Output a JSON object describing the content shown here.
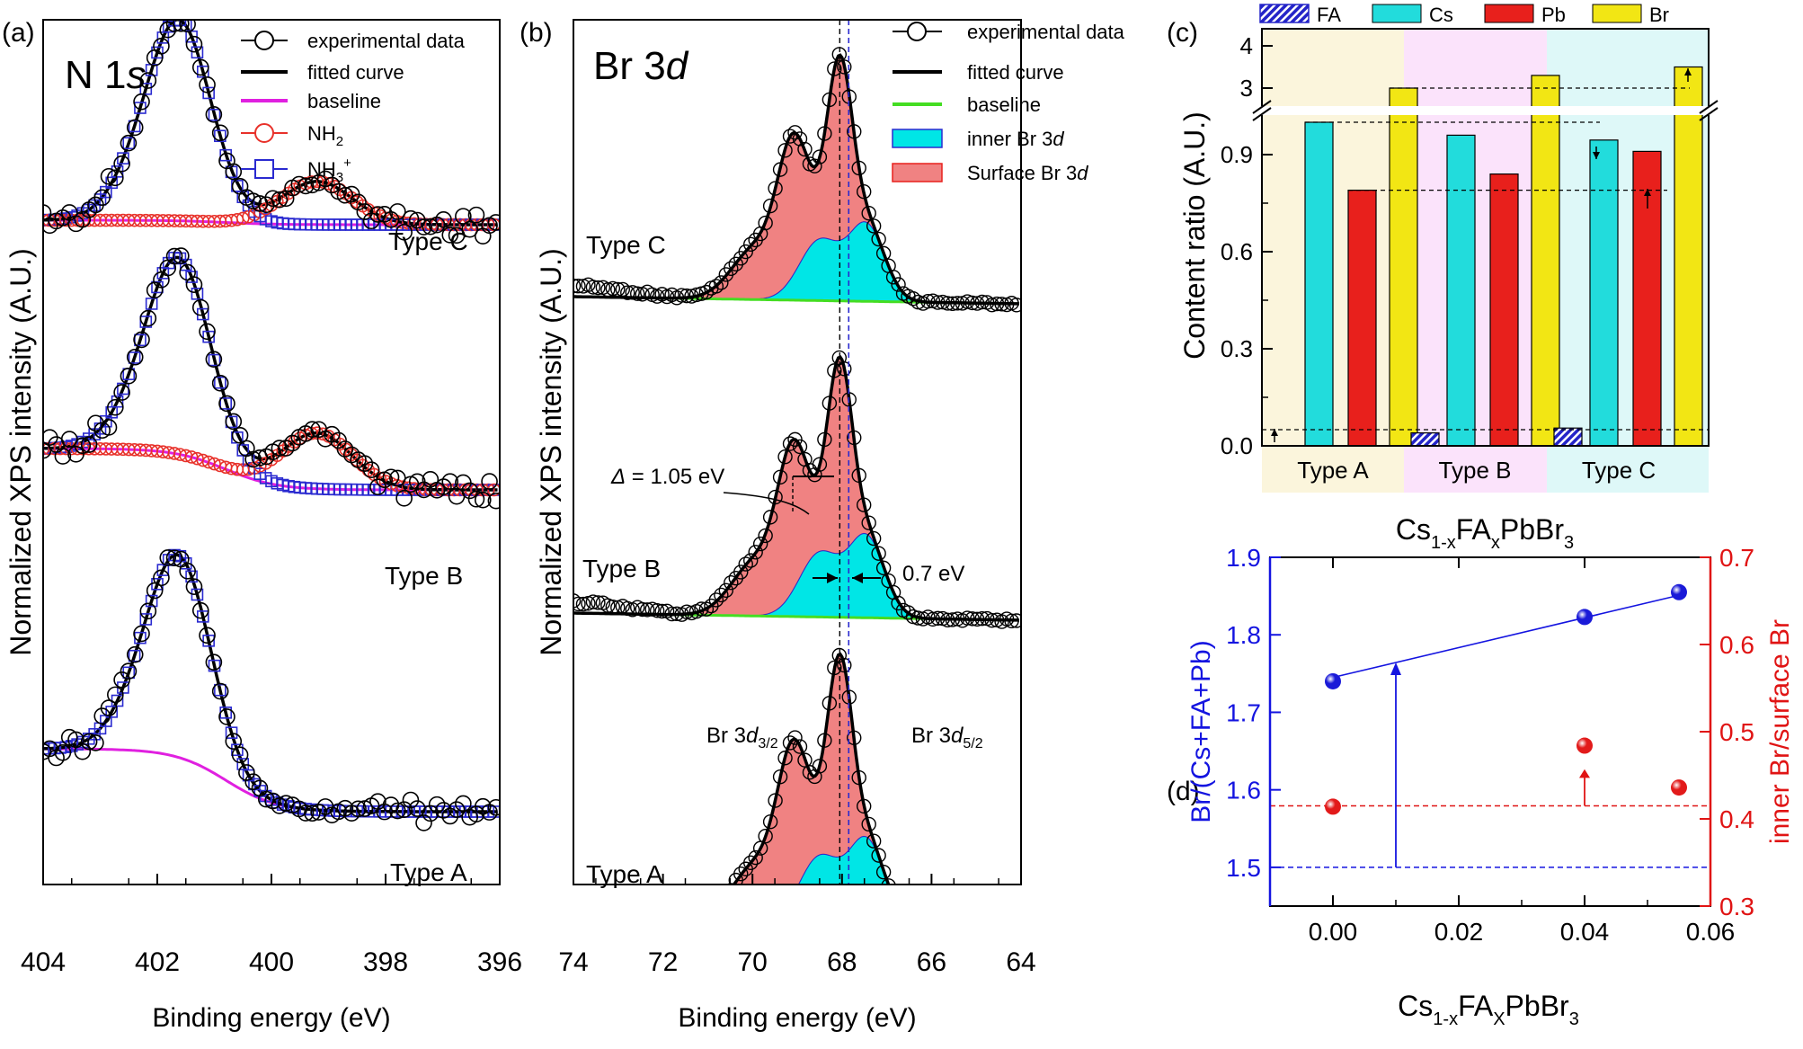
{
  "colors": {
    "nh2": "#e8312a",
    "nh3": "#2a2ad0",
    "baseline_a": "#e020e0",
    "baseline_b": "#44dd22",
    "inner": "#00e6e6",
    "surface": "#f08282",
    "fa": "#2424c8",
    "cs": "#22dcdc",
    "pb": "#e8201c",
    "br": "#f2e614",
    "bg_type_a": "#fbf5dc",
    "bg_type_b": "#fbe3fb",
    "bg_type_c": "#def8f8",
    "blue_axis": "#1414e0",
    "red_axis": "#e01414"
  },
  "chart_data": [
    {
      "id": "a",
      "type": "line",
      "panel_label": "(a)",
      "title": "N 1s",
      "xlabel": "Binding energy (eV)",
      "ylabel": "Normalized XPS intensity (A.U.)",
      "xlim": [
        404,
        396
      ],
      "xticks": [
        "404",
        "402",
        "400",
        "398",
        "396"
      ],
      "legend": [
        "experimental data",
        "fitted curve",
        "baseline",
        "NH2",
        "NH3+"
      ],
      "traces": [
        "Type C",
        "Type B",
        "Type A"
      ],
      "peaks": {
        "NH3+": {
          "Type A": 401.6,
          "Type B": 401.6,
          "Type C": 401.6
        },
        "NH2": {
          "Type A": null,
          "Type B": 399.2,
          "Type C": 399.2
        }
      }
    },
    {
      "id": "b",
      "type": "line",
      "panel_label": "(b)",
      "title": "Br 3d",
      "xlabel": "Binding energy (eV)",
      "ylabel": "Normalized XPS intensity (A.U.)",
      "xlim": [
        74,
        64
      ],
      "xticks": [
        "74",
        "72",
        "70",
        "68",
        "66",
        "64"
      ],
      "legend": [
        "experimental data",
        "fitted curve",
        "baseline",
        "inner Br 3d",
        "Surface Br 3d"
      ],
      "traces": [
        "Type C",
        "Type B",
        "Type A"
      ],
      "annotations": [
        "Δ = 1.05 eV",
        "0.7 eV",
        "Br 3d3/2",
        "Br 3d5/2"
      ],
      "reference_lines_eV": [
        68.05,
        67.85
      ]
    },
    {
      "id": "c",
      "type": "bar",
      "panel_label": "(c)",
      "xlabel": "Cs1-xFAxPbBr3",
      "ylabel": "Content ratio (A.U.)",
      "categories": [
        "Type A",
        "Type B",
        "Type C"
      ],
      "series": [
        {
          "name": "FA",
          "values": [
            0.0,
            0.04,
            0.055
          ]
        },
        {
          "name": "Cs",
          "values": [
            1.0,
            0.96,
            0.945
          ]
        },
        {
          "name": "Pb",
          "values": [
            0.79,
            0.84,
            0.91
          ]
        },
        {
          "name": "Br",
          "values": [
            3.0,
            3.3,
            3.5
          ]
        }
      ],
      "yticks_lower": [
        "0.0",
        "0.3",
        "0.6",
        "0.9"
      ],
      "yticks_upper": [
        "3",
        "4"
      ],
      "axis_break_between": [
        1.0,
        2.5
      ]
    },
    {
      "id": "d",
      "type": "scatter",
      "panel_label": "(d)",
      "title": "Cs1-xFAxPbBr3",
      "xlabel": "Cs1-xFAXPbBr3",
      "ylabel_left": "Br/(Cs+FA+Pb)",
      "ylabel_right": "inner Br/surface Br",
      "xlim": [
        -0.01,
        0.06
      ],
      "ylim_left": [
        1.45,
        1.9
      ],
      "ylim_right": [
        0.3,
        0.7
      ],
      "xticks": [
        "0.00",
        "0.02",
        "0.04",
        "0.06"
      ],
      "yticks_left": [
        "1.5",
        "1.6",
        "1.7",
        "1.8",
        "1.9"
      ],
      "yticks_right": [
        "0.3",
        "0.4",
        "0.5",
        "0.6",
        "0.7"
      ],
      "series": [
        {
          "name": "Br/(Cs+FA+Pb)",
          "axis": "left",
          "x": [
            0.0,
            0.04,
            0.055
          ],
          "y": [
            1.74,
            1.823,
            1.855
          ]
        },
        {
          "name": "inner Br/surface Br",
          "axis": "right",
          "x": [
            0.0,
            0.04,
            0.055
          ],
          "y": [
            0.414,
            0.484,
            0.436
          ]
        }
      ],
      "fit_line": {
        "x": [
          0.0,
          0.055
        ],
        "y": [
          1.745,
          1.851
        ]
      },
      "reference_lines": {
        "left": 1.5,
        "right": 0.415
      }
    }
  ]
}
